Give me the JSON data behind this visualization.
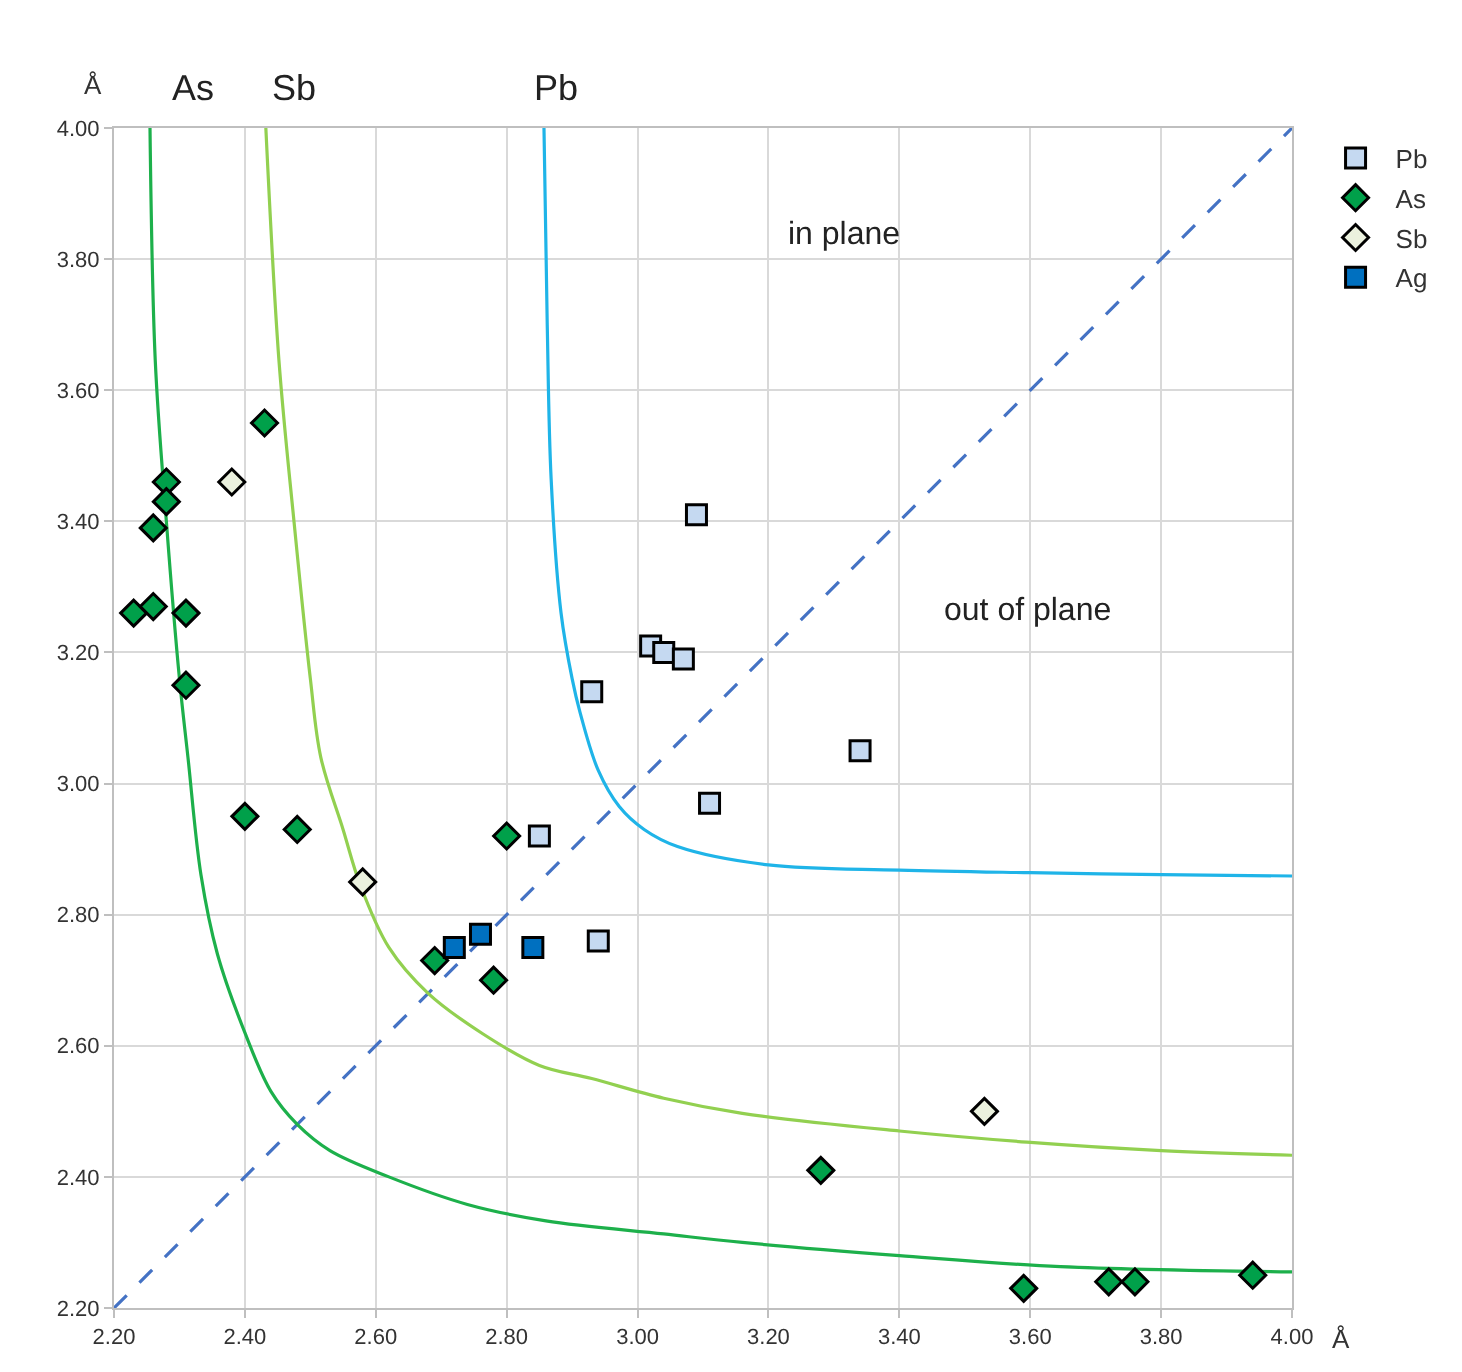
{
  "chart_data": {
    "type": "scatter",
    "xlabel": "Å",
    "ylabel": "Å",
    "xlim": [
      2.2,
      4.0
    ],
    "ylim": [
      2.2,
      4.0
    ],
    "xticks": [
      {
        "value": 2.2,
        "label": "2.20"
      },
      {
        "value": 2.4,
        "label": "2.40"
      },
      {
        "value": 2.6,
        "label": "2.60"
      },
      {
        "value": 2.8,
        "label": "2.80"
      },
      {
        "value": 3.0,
        "label": "3.00"
      },
      {
        "value": 3.2,
        "label": "3.20"
      },
      {
        "value": 3.4,
        "label": "3.40"
      },
      {
        "value": 3.6,
        "label": "3.60"
      },
      {
        "value": 3.8,
        "label": "3.80"
      },
      {
        "value": 4.0,
        "label": "4.00"
      }
    ],
    "yticks": [
      {
        "value": 2.2,
        "label": "2.20"
      },
      {
        "value": 2.4,
        "label": "2.40"
      },
      {
        "value": 2.6,
        "label": "2.60"
      },
      {
        "value": 2.8,
        "label": "2.80"
      },
      {
        "value": 3.0,
        "label": "3.00"
      },
      {
        "value": 3.2,
        "label": "3.20"
      },
      {
        "value": 3.4,
        "label": "3.40"
      },
      {
        "value": 3.6,
        "label": "3.60"
      },
      {
        "value": 3.8,
        "label": "3.80"
      },
      {
        "value": 4.0,
        "label": "4.00"
      }
    ],
    "grid": true,
    "legend": "top right",
    "series": [
      {
        "type": "line",
        "color": "#4472c4",
        "line_style": "dashed",
        "x": [
          2.2,
          4.0
        ],
        "values": [
          2.2,
          4.0
        ]
      },
      {
        "type": "line",
        "color": "#1db04b",
        "line_style": "solid",
        "x": [
          2.255,
          2.263,
          2.28,
          2.3,
          2.313,
          2.333,
          2.358,
          2.4,
          2.44,
          2.48,
          2.53,
          2.62,
          2.74,
          2.86,
          3.04,
          3.16,
          3.4,
          3.646,
          4.0
        ],
        "values": [
          4.0,
          3.646,
          3.4,
          3.16,
          3.04,
          2.86,
          2.74,
          2.62,
          2.53,
          2.48,
          2.44,
          2.4,
          2.358,
          2.333,
          2.313,
          2.3,
          2.28,
          2.263,
          2.255
        ]
      },
      {
        "type": "line",
        "color": "#92d050",
        "line_style": "solid",
        "x": [
          2.432,
          2.452,
          2.475,
          2.5,
          2.516,
          2.55,
          2.576,
          2.62,
          2.68,
          2.764,
          2.85,
          2.93,
          3.04,
          3.16,
          3.4,
          3.595,
          3.8,
          4.0
        ],
        "values": [
          4.0,
          3.646,
          3.4,
          3.16,
          3.04,
          2.93,
          2.846,
          2.75,
          2.68,
          2.618,
          2.57,
          2.55,
          2.52,
          2.497,
          2.47,
          2.453,
          2.44,
          2.433
        ]
      },
      {
        "type": "line",
        "color": "#1fb4e8",
        "line_style": "solid",
        "x": [
          2.857,
          2.862,
          2.868,
          2.883,
          2.9,
          2.912,
          2.94,
          2.972,
          3.01,
          3.061,
          3.2,
          3.4,
          3.6,
          3.8,
          4.0
        ],
        "values": [
          4.0,
          3.7,
          3.464,
          3.261,
          3.16,
          3.109,
          3.02,
          2.965,
          2.93,
          2.904,
          2.876,
          2.868,
          2.864,
          2.861,
          2.859
        ]
      },
      {
        "name": "Pb",
        "marker": "square",
        "color": "#c5d9f1",
        "x": [
          3.09,
          3.02,
          3.04,
          3.07,
          2.93,
          3.34,
          3.11,
          2.85,
          2.94
        ],
        "values": [
          3.41,
          3.21,
          3.2,
          3.19,
          3.14,
          3.05,
          2.97,
          2.92,
          2.76
        ]
      },
      {
        "name": "As",
        "marker": "diamond",
        "color": "#00a04a",
        "x": [
          2.23,
          2.26,
          2.31,
          2.31,
          2.26,
          2.28,
          2.28,
          2.43,
          2.4,
          2.48,
          2.8,
          2.69,
          2.78,
          3.28,
          3.59,
          3.72,
          3.76,
          3.94
        ],
        "values": [
          3.26,
          3.27,
          3.26,
          3.15,
          3.39,
          3.46,
          3.43,
          3.55,
          2.95,
          2.93,
          2.92,
          2.73,
          2.7,
          2.41,
          2.23,
          2.24,
          2.24,
          2.25
        ]
      },
      {
        "name": "Sb",
        "marker": "diamond",
        "color": "#ebf1de",
        "x": [
          2.38,
          2.58,
          3.53
        ],
        "values": [
          3.46,
          2.85,
          2.5
        ]
      },
      {
        "name": "Ag",
        "marker": "square",
        "color": "#0070c0",
        "x": [
          2.72,
          2.76,
          2.84
        ],
        "values": [
          2.75,
          2.77,
          2.75
        ]
      }
    ],
    "annotations": [
      "As",
      "Sb",
      "Pb",
      "in plane",
      "out of plane"
    ]
  }
}
